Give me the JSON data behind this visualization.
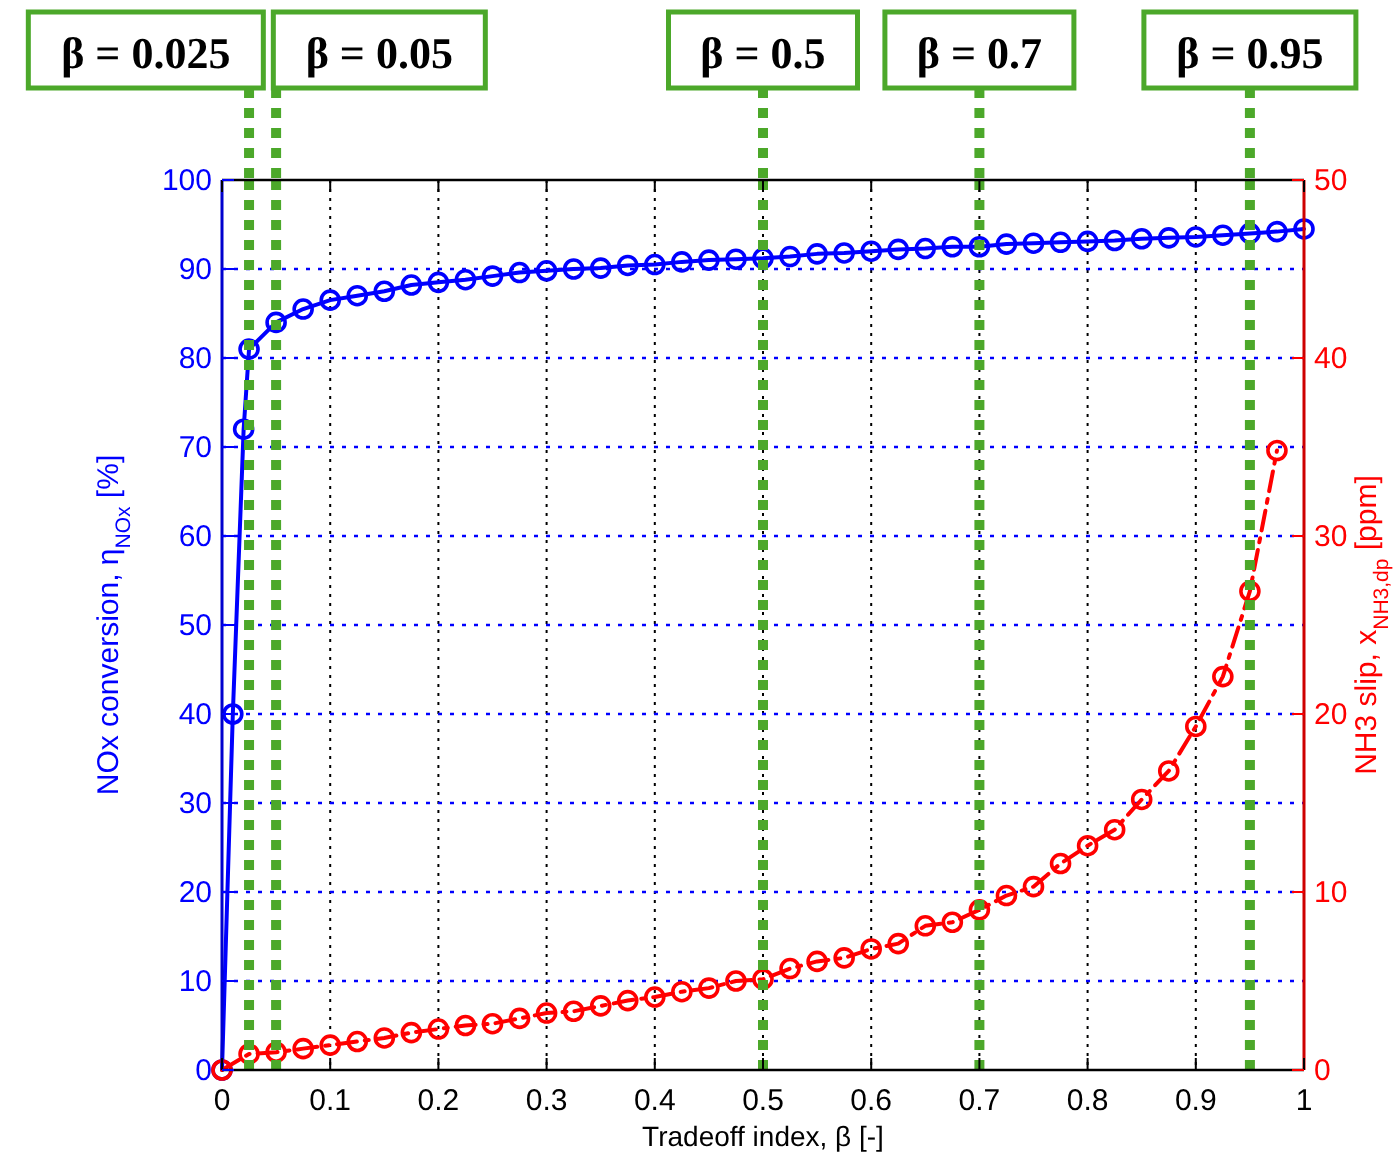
{
  "chart_data": {
    "type": "line",
    "xlabel": "Tradeoff index, β [-]",
    "ylabel": "NOx conversion, η$_{NOx}$ [%]",
    "y2label": "NH3 slip, x$_{NH3,dp}$ [ppm]",
    "xlim": [
      0,
      1
    ],
    "xticks": [
      0,
      0.1,
      0.2,
      0.3,
      0.4,
      0.5,
      0.6,
      0.7,
      0.8,
      0.9,
      1
    ],
    "ylim": [
      0,
      100
    ],
    "yticks": [
      0,
      10,
      20,
      30,
      40,
      50,
      60,
      70,
      80,
      90,
      100
    ],
    "y2lim": [
      0,
      50
    ],
    "y2ticks": [
      0,
      10,
      20,
      30,
      40,
      50
    ],
    "grid": true,
    "marker": "circle",
    "series": [
      {
        "color": "#0000ff",
        "line_style": "solid",
        "x": [
          0,
          0.01,
          0.02,
          0.025,
          0.05,
          0.075,
          0.1,
          0.125,
          0.15,
          0.175,
          0.2,
          0.225,
          0.25,
          0.275,
          0.3,
          0.325,
          0.35,
          0.375,
          0.4,
          0.425,
          0.45,
          0.475,
          0.5,
          0.525,
          0.55,
          0.575,
          0.6,
          0.625,
          0.65,
          0.675,
          0.7,
          0.725,
          0.75,
          0.775,
          0.8,
          0.825,
          0.85,
          0.875,
          0.9,
          0.925,
          0.95,
          0.975,
          1
        ],
        "values": [
          0,
          40,
          72,
          81,
          84,
          85.5,
          86.5,
          87,
          87.5,
          88.2,
          88.5,
          88.8,
          89.2,
          89.6,
          89.8,
          90,
          90.1,
          90.4,
          90.5,
          90.8,
          91,
          91.1,
          91.2,
          91.4,
          91.7,
          91.8,
          92,
          92.2,
          92.3,
          92.5,
          92.5,
          92.8,
          92.9,
          93,
          93.1,
          93.2,
          93.4,
          93.5,
          93.6,
          93.8,
          94,
          94.2,
          94.5
        ]
      },
      {
        "color": "#ff0000",
        "line_style": "dashed",
        "axis": "y2",
        "x": [
          0,
          0.025,
          0.05,
          0.075,
          0.1,
          0.125,
          0.15,
          0.175,
          0.2,
          0.225,
          0.25,
          0.275,
          0.3,
          0.325,
          0.35,
          0.375,
          0.4,
          0.425,
          0.45,
          0.475,
          0.5,
          0.525,
          0.55,
          0.575,
          0.6,
          0.625,
          0.65,
          0.675,
          0.7,
          0.725,
          0.75,
          0.775,
          0.8,
          0.825,
          0.85,
          0.875,
          0.9,
          0.925,
          0.95,
          0.975
        ],
        "values": [
          0,
          0.9,
          1,
          1.2,
          1.4,
          1.6,
          1.8,
          2.1,
          2.3,
          2.5,
          2.6,
          2.9,
          3.2,
          3.3,
          3.6,
          3.9,
          4.1,
          4.4,
          4.6,
          5,
          5.1,
          5.7,
          6.1,
          6.3,
          6.8,
          7.1,
          8.1,
          8.3,
          9,
          9.8,
          10.3,
          11.6,
          12.6,
          13.5,
          15.2,
          16.8,
          19.3,
          22.1,
          26.9,
          34.8
        ]
      }
    ],
    "ref_lines": [
      {
        "axis": "x",
        "value": 0.025,
        "label": "β = 0.025",
        "color": "#4ca82a",
        "line_style": "dotted"
      },
      {
        "axis": "x",
        "value": 0.05,
        "label": "β = 0.05",
        "color": "#4ca82a",
        "line_style": "dotted"
      },
      {
        "axis": "x",
        "value": 0.5,
        "label": "β = 0.5",
        "color": "#4ca82a",
        "line_style": "dotted"
      },
      {
        "axis": "x",
        "value": 0.7,
        "label": "β = 0.7",
        "color": "#4ca82a",
        "line_style": "dotted"
      },
      {
        "axis": "x",
        "value": 0.95,
        "label": "β = 0.95",
        "color": "#4ca82a",
        "line_style": "dotted"
      }
    ]
  }
}
